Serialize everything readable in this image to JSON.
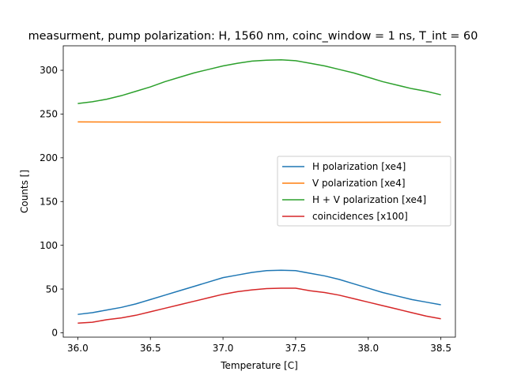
{
  "chart_data": {
    "type": "line",
    "title": "measurment, pump polarization: H, 1560 nm, coinc_window = 1 ns, T_int = 60",
    "xlabel": "Temperature [C]",
    "ylabel": "Counts []",
    "xlim": [
      35.9,
      38.6
    ],
    "ylim": [
      -5,
      328
    ],
    "xticks": [
      36.0,
      36.5,
      37.0,
      37.5,
      38.0,
      38.5
    ],
    "xtick_labels": [
      "36.0",
      "36.5",
      "37.0",
      "37.5",
      "38.0",
      "38.5"
    ],
    "yticks": [
      0,
      50,
      100,
      150,
      200,
      250,
      300
    ],
    "ytick_labels": [
      "0",
      "50",
      "100",
      "150",
      "200",
      "250",
      "300"
    ],
    "grid": false,
    "legend_position": "center-right",
    "series": [
      {
        "name": "H polarization [xe4]",
        "color": "#1f77b4",
        "x": [
          36.0,
          36.1,
          36.2,
          36.3,
          36.4,
          36.5,
          36.6,
          36.7,
          36.8,
          36.9,
          37.0,
          37.1,
          37.2,
          37.3,
          37.4,
          37.5,
          37.6,
          37.7,
          37.8,
          37.9,
          38.0,
          38.1,
          38.2,
          38.3,
          38.4,
          38.5
        ],
        "values": [
          21,
          23,
          26,
          29,
          33,
          38,
          43,
          48,
          53,
          58,
          63,
          66,
          69,
          71,
          71.5,
          71,
          68,
          65,
          61,
          56,
          51,
          46,
          42,
          38,
          35,
          32
        ]
      },
      {
        "name": "V polarization [xe4]",
        "color": "#ff7f0e",
        "x": [
          36.0,
          36.5,
          37.0,
          37.5,
          38.0,
          38.5
        ],
        "values": [
          241,
          240.8,
          240.6,
          240.5,
          240.6,
          240.7
        ]
      },
      {
        "name": "H + V polarization [xe4]",
        "color": "#2ca02c",
        "x": [
          36.0,
          36.1,
          36.2,
          36.3,
          36.4,
          36.5,
          36.6,
          36.7,
          36.8,
          36.9,
          37.0,
          37.1,
          37.2,
          37.3,
          37.4,
          37.5,
          37.6,
          37.7,
          37.8,
          37.9,
          38.0,
          38.1,
          38.2,
          38.3,
          38.4,
          38.5
        ],
        "values": [
          262,
          264,
          267,
          271,
          276,
          281,
          287,
          292,
          297,
          301,
          305,
          308,
          310.5,
          311.5,
          312,
          311,
          308,
          305,
          301,
          297,
          292,
          287,
          283,
          279,
          276,
          272
        ]
      },
      {
        "name": "coincidences [x100]",
        "color": "#d62728",
        "x": [
          36.0,
          36.1,
          36.2,
          36.3,
          36.4,
          36.5,
          36.6,
          36.7,
          36.8,
          36.9,
          37.0,
          37.1,
          37.2,
          37.3,
          37.4,
          37.5,
          37.6,
          37.7,
          37.8,
          37.9,
          38.0,
          38.1,
          38.2,
          38.3,
          38.4,
          38.5
        ],
        "values": [
          11,
          12,
          15,
          17,
          20,
          24,
          28,
          32,
          36,
          40,
          44,
          47,
          49,
          50.5,
          51,
          51,
          48,
          46,
          43,
          39,
          35,
          31,
          27,
          23,
          19,
          16
        ]
      }
    ]
  }
}
